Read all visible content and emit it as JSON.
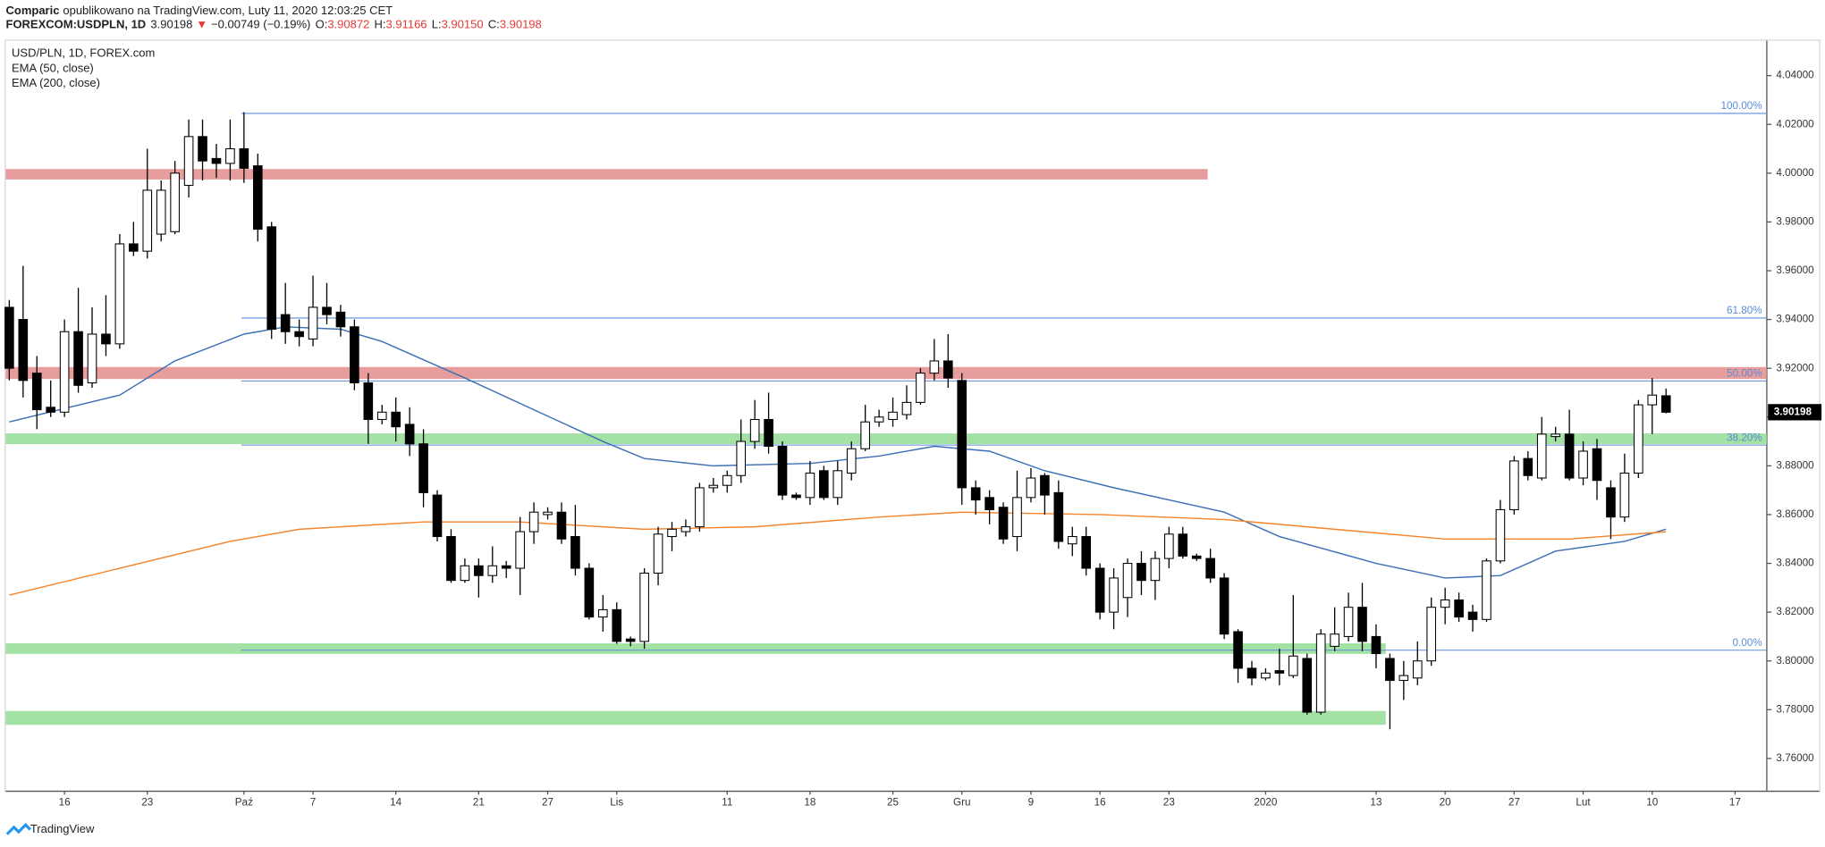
{
  "header": {
    "author": "Comparic",
    "published": "opublikowano na TradingView.com, Luty 11, 2020 12:03:25 CET",
    "symbol": "FOREXCOM:USDPLN, 1D",
    "last": "3.90198",
    "arrow": "▼",
    "change": "−0.00749 (−0.19%)",
    "ohlc": [
      {
        "label": "O:",
        "value": "3.90872"
      },
      {
        "label": "H:",
        "value": "3.91166"
      },
      {
        "label": "L:",
        "value": "3.90150"
      },
      {
        "label": "C:",
        "value": "3.90198"
      }
    ]
  },
  "footer": {
    "brand": "TradingView"
  },
  "chart_data": {
    "type": "candlestick",
    "title": "USD/PLN, 1D, FOREX.com",
    "categories": [
      null,
      null,
      null,
      null,
      "16",
      null,
      null,
      null,
      null,
      null,
      "23",
      null,
      null,
      null,
      null,
      null,
      null,
      "Paź",
      null,
      null,
      null,
      null,
      "7",
      null,
      null,
      null,
      null,
      null,
      "14",
      null,
      null,
      null,
      null,
      null,
      "21",
      null,
      null,
      null,
      null,
      "27",
      null,
      null,
      null,
      null,
      "Lis",
      null,
      null,
      null,
      null,
      null,
      null,
      null,
      "11",
      null,
      null,
      null,
      null,
      null,
      "18",
      null,
      null,
      null,
      null,
      null,
      "25",
      null,
      null,
      null,
      null,
      "Gru",
      null,
      null,
      null,
      null,
      "9",
      null,
      null,
      null,
      null,
      "16",
      null,
      null,
      null,
      null,
      "23",
      null,
      null,
      null,
      null,
      null,
      null,
      "2020",
      null,
      null,
      null,
      null,
      null,
      null,
      null,
      "13",
      null,
      null,
      null,
      null,
      "20",
      null,
      null,
      null,
      null,
      "27",
      null,
      null,
      null,
      null,
      "Lut",
      null,
      null,
      null,
      null,
      "10",
      null,
      null,
      null,
      null,
      null,
      "17",
      null
    ],
    "open": [
      3.945,
      3.94,
      3.918,
      3.904,
      3.902,
      3.935,
      3.914,
      3.934,
      3.93,
      3.971,
      3.968,
      3.975,
      3.976,
      3.995,
      4.015,
      4.006,
      4.004,
      4.01,
      4.003,
      3.978,
      3.942,
      3.935,
      3.932,
      3.945,
      3.943,
      3.937,
      3.914,
      3.899,
      3.902,
      3.897,
      3.889,
      3.868,
      3.851,
      3.833,
      3.839,
      3.835,
      3.839,
      3.838,
      3.853,
      3.86,
      3.861,
      3.851,
      3.838,
      3.818,
      3.821,
      3.809,
      3.808,
      3.836,
      3.851,
      3.853,
      3.855,
      3.871,
      3.872,
      3.876,
      3.89,
      3.899,
      3.888,
      3.868,
      3.867,
      3.878,
      3.867,
      3.877,
      3.887,
      3.898,
      3.899,
      3.901,
      3.906,
      3.918,
      3.923,
      3.915,
      3.871,
      3.867,
      3.863,
      3.851,
      3.867,
      3.876,
      3.869,
      3.848,
      3.851,
      3.838,
      3.82,
      3.826,
      3.84,
      3.833,
      3.842,
      3.852,
      3.843,
      3.842,
      3.834,
      3.812,
      3.797,
      3.793,
      3.796,
      3.794,
      3.801,
      3.779,
      3.806,
      3.81,
      3.822,
      3.81,
      3.801,
      3.792,
      3.793,
      3.8,
      3.822,
      3.825,
      3.82,
      3.817,
      3.841,
      3.862,
      3.883,
      3.875,
      3.892,
      3.893,
      3.875,
      3.887,
      3.871,
      3.859,
      3.877,
      3.905,
      3.90872,
      null,
      null,
      null,
      null,
      null,
      null
    ],
    "high": [
      3.948,
      3.962,
      3.925,
      3.915,
      3.94,
      3.953,
      3.945,
      3.95,
      3.975,
      3.98,
      4.01,
      3.997,
      4.005,
      4.022,
      4.022,
      4.012,
      4.022,
      4.025,
      4.008,
      3.98,
      3.955,
      3.94,
      3.958,
      3.955,
      3.946,
      3.94,
      3.918,
      3.905,
      3.908,
      3.904,
      3.895,
      3.87,
      3.854,
      3.842,
      3.842,
      3.847,
      3.841,
      3.859,
      3.865,
      3.863,
      3.865,
      3.864,
      3.84,
      3.827,
      3.824,
      3.81,
      3.838,
      3.855,
      3.857,
      3.858,
      3.873,
      3.875,
      3.878,
      3.899,
      3.907,
      3.91,
      3.89,
      3.869,
      3.882,
      3.88,
      3.882,
      3.89,
      3.905,
      3.903,
      3.908,
      3.913,
      3.92,
      3.932,
      3.934,
      3.918,
      3.874,
      3.87,
      3.865,
      3.878,
      3.879,
      3.877,
      3.874,
      3.855,
      3.855,
      3.84,
      3.838,
      3.842,
      3.845,
      3.845,
      3.855,
      3.855,
      3.844,
      3.846,
      3.836,
      3.813,
      3.8,
      3.797,
      3.805,
      3.827,
      3.803,
      3.813,
      3.822,
      3.828,
      3.832,
      3.815,
      3.803,
      3.8,
      3.808,
      3.826,
      3.83,
      3.828,
      3.823,
      3.842,
      3.866,
      3.884,
      3.886,
      3.9,
      3.896,
      3.903,
      3.89,
      3.891,
      3.874,
      3.885,
      3.907,
      3.916,
      3.91166,
      null,
      null,
      null,
      null,
      null,
      null
    ],
    "low": [
      3.915,
      3.908,
      3.895,
      3.9,
      3.9,
      3.91,
      3.912,
      3.925,
      3.928,
      3.966,
      3.965,
      3.972,
      3.975,
      3.99,
      3.997,
      3.998,
      3.997,
      3.996,
      3.972,
      3.932,
      3.93,
      3.929,
      3.929,
      3.938,
      3.933,
      3.911,
      3.889,
      3.897,
      3.89,
      3.884,
      3.863,
      3.849,
      3.832,
      3.832,
      3.826,
      3.832,
      3.834,
      3.827,
      3.848,
      3.858,
      3.848,
      3.835,
      3.817,
      3.812,
      3.807,
      3.806,
      3.805,
      3.831,
      3.845,
      3.851,
      3.853,
      3.869,
      3.869,
      3.873,
      3.887,
      3.885,
      3.866,
      3.866,
      3.864,
      3.866,
      3.864,
      3.874,
      3.886,
      3.896,
      3.896,
      3.899,
      3.905,
      3.915,
      3.912,
      3.864,
      3.86,
      3.856,
      3.848,
      3.845,
      3.865,
      3.86,
      3.846,
      3.843,
      3.835,
      3.817,
      3.813,
      3.818,
      3.827,
      3.825,
      3.838,
      3.842,
      3.841,
      3.832,
      3.809,
      3.791,
      3.79,
      3.792,
      3.79,
      3.793,
      3.778,
      3.778,
      3.804,
      3.808,
      3.804,
      3.797,
      3.772,
      3.784,
      3.79,
      3.798,
      3.815,
      3.816,
      3.812,
      3.816,
      3.84,
      3.86,
      3.874,
      3.874,
      3.89,
      3.874,
      3.872,
      3.866,
      3.85,
      3.857,
      3.875,
      3.893,
      3.9015,
      null,
      null,
      null,
      null,
      null,
      null
    ],
    "close": [
      3.92,
      3.915,
      3.903,
      3.902,
      3.935,
      3.913,
      3.934,
      3.93,
      3.971,
      3.968,
      3.993,
      3.993,
      4.0,
      4.015,
      4.005,
      4.004,
      4.01,
      4.002,
      3.977,
      3.936,
      3.935,
      3.933,
      3.945,
      3.942,
      3.937,
      3.914,
      3.899,
      3.902,
      3.896,
      3.889,
      3.869,
      3.851,
      3.833,
      3.839,
      3.835,
      3.839,
      3.838,
      3.853,
      3.861,
      3.861,
      3.85,
      3.838,
      3.818,
      3.821,
      3.808,
      3.808,
      3.836,
      3.852,
      3.854,
      3.855,
      3.871,
      3.872,
      3.876,
      3.89,
      3.899,
      3.888,
      3.868,
      3.867,
      3.877,
      3.867,
      3.878,
      3.887,
      3.898,
      3.9,
      3.902,
      3.906,
      3.918,
      3.923,
      3.916,
      3.871,
      3.866,
      3.862,
      3.85,
      3.867,
      3.875,
      3.868,
      3.849,
      3.851,
      3.838,
      3.82,
      3.834,
      3.84,
      3.833,
      3.842,
      3.852,
      3.843,
      3.842,
      3.834,
      3.811,
      3.797,
      3.793,
      3.795,
      3.795,
      3.802,
      3.779,
      3.811,
      3.811,
      3.822,
      3.808,
      3.803,
      3.792,
      3.794,
      3.8,
      3.822,
      3.825,
      3.818,
      3.817,
      3.841,
      3.862,
      3.882,
      3.876,
      3.893,
      3.893,
      3.875,
      3.886,
      3.874,
      3.859,
      3.877,
      3.905,
      3.909,
      3.90198,
      null,
      null,
      null,
      null,
      null,
      null
    ],
    "up_color": "#ffffff",
    "down_color": "#000000",
    "series": [
      {
        "name": "EMA (50, close)",
        "color": "#3b6fb6",
        "x": [
          0,
          8,
          12,
          17,
          20,
          24,
          27,
          33,
          38,
          43,
          46,
          51,
          58,
          63,
          67,
          71,
          75,
          80,
          88,
          92,
          99,
          104,
          108,
          112,
          117,
          120
        ],
        "values": [
          3.898,
          3.909,
          3.923,
          3.934,
          3.937,
          3.936,
          3.931,
          3.916,
          3.903,
          3.89,
          3.883,
          3.88,
          3.881,
          3.884,
          3.888,
          3.886,
          3.878,
          3.871,
          3.861,
          3.851,
          3.84,
          3.834,
          3.835,
          3.845,
          3.849,
          3.854
        ]
      },
      {
        "name": "EMA (200, close)",
        "color": "#f5842a",
        "x": [
          0,
          8,
          16,
          21,
          27,
          30,
          37,
          46,
          54,
          63,
          69,
          79,
          88,
          96,
          104,
          113,
          120
        ],
        "values": [
          3.827,
          3.838,
          3.849,
          3.854,
          3.856,
          3.857,
          3.857,
          3.854,
          3.855,
          3.859,
          3.861,
          3.86,
          3.858,
          3.854,
          3.85,
          3.85,
          3.853
        ]
      }
    ],
    "zones": [
      {
        "from": 3.9974,
        "to": 4.0017,
        "end": 86.8,
        "color": "#e48c8c"
      },
      {
        "from": 3.9156,
        "to": 3.9205,
        "color": "#e48c8c"
      },
      {
        "from": 3.8889,
        "to": 3.8933,
        "color": "#94dc94"
      },
      {
        "from": 3.8029,
        "to": 3.8072,
        "end": 99.7,
        "color": "#94dc94"
      },
      {
        "from": 3.7738,
        "to": 3.7795,
        "end": 99.7,
        "color": "#94dc94"
      }
    ],
    "fib": {
      "start": 16.8,
      "color": "#5b8bd8",
      "levels": [
        {
          "label": "100.00%",
          "value": 4.0245
        },
        {
          "label": "61.80%",
          "value": 3.9406
        },
        {
          "label": "50.00%",
          "value": 3.9148
        },
        {
          "label": "38.20%",
          "value": 3.8885
        },
        {
          "label": "0.00%",
          "value": 3.8044
        }
      ]
    },
    "last_price": 3.90198,
    "xlim": [
      -0.25,
      127.3
    ],
    "ylim": [
      3.7466,
      4.0543
    ],
    "yticks": [
      {
        "value": 3.76,
        "label": "3.76000"
      },
      {
        "value": 3.78,
        "label": "3.78000"
      },
      {
        "value": 3.8,
        "label": "3.80000"
      },
      {
        "value": 3.82,
        "label": "3.82000"
      },
      {
        "value": 3.84,
        "label": "3.84000"
      },
      {
        "value": 3.86,
        "label": "3.86000"
      },
      {
        "value": 3.88,
        "label": "3.88000"
      },
      {
        "value": 3.9,
        "label": "3.90000"
      },
      {
        "value": 3.92,
        "label": "3.92000"
      },
      {
        "value": 3.94,
        "label": "3.94000"
      },
      {
        "value": 3.96,
        "label": "3.96000"
      },
      {
        "value": 3.98,
        "label": "3.98000"
      },
      {
        "value": 4.0,
        "label": "4.00000"
      },
      {
        "value": 4.02,
        "label": "4.02000"
      },
      {
        "value": 4.04,
        "label": "4.04000"
      }
    ]
  }
}
